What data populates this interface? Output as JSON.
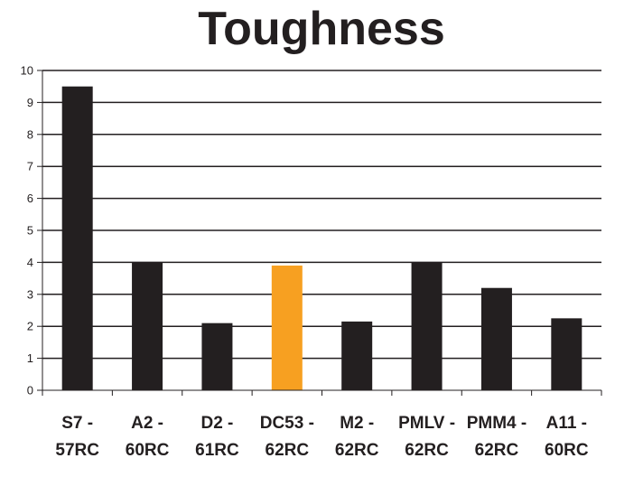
{
  "chart_data": {
    "type": "bar",
    "title": "Toughness",
    "categories": [
      [
        "S7 -",
        "57RC"
      ],
      [
        "A2 -",
        "60RC"
      ],
      [
        "D2 -",
        "61RC"
      ],
      [
        "DC53 -",
        "62RC"
      ],
      [
        "M2 -",
        "62RC"
      ],
      [
        "PMLV -",
        "62RC"
      ],
      [
        "PMM4 -",
        "62RC"
      ],
      [
        "A11 -",
        "60RC"
      ]
    ],
    "values": [
      9.5,
      4.0,
      2.1,
      3.9,
      2.15,
      4.0,
      3.2,
      2.25
    ],
    "colors": [
      "#231f20",
      "#231f20",
      "#231f20",
      "#f7a021",
      "#231f20",
      "#231f20",
      "#231f20",
      "#231f20"
    ],
    "ylim": [
      0,
      10
    ],
    "yticks": [
      "0",
      "1",
      "2",
      "3",
      "4",
      "5",
      "6",
      "7",
      "8",
      "9",
      "10"
    ],
    "grid": true,
    "xlabel": "",
    "ylabel": ""
  }
}
